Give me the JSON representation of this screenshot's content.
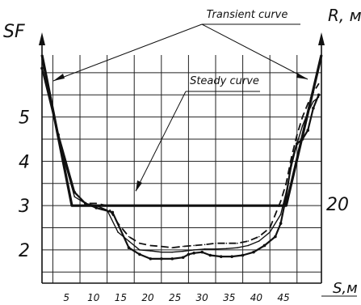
{
  "chart_data": {
    "type": "line",
    "xlabel": "S,м",
    "ylabel_left": "SF",
    "ylabel_right": "R, м",
    "x_ticks": [
      "5",
      "10",
      "15",
      "20",
      "25",
      "30",
      "35",
      "40",
      "45"
    ],
    "y_ticks_left": [
      "2",
      "3",
      "4",
      "5"
    ],
    "y_ticks_right": [
      "20"
    ],
    "xlim": [
      -2,
      49.5
    ],
    "ylim": [
      1.25,
      6.4
    ],
    "grid": true,
    "annotations": [
      "Transient curve",
      "Steady curve"
    ],
    "series": [
      {
        "style": "thick-solid",
        "x": [
          -2,
          3.5,
          43,
          49.5
        ],
        "y": [
          6.4,
          3.0,
          3.0,
          6.4
        ]
      },
      {
        "style": "solid-with-marks",
        "x": [
          -2,
          1,
          4,
          6,
          8,
          11,
          14,
          16,
          18,
          20,
          22,
          24,
          25,
          26,
          27.5,
          29,
          31,
          33,
          35,
          37,
          39,
          41,
          42,
          43,
          44,
          45,
          46,
          47,
          48,
          49
        ],
        "y": [
          6.1,
          4.6,
          3.3,
          3.05,
          2.95,
          2.85,
          2.05,
          1.9,
          1.8,
          1.8,
          1.8,
          1.83,
          1.9,
          1.93,
          1.95,
          1.88,
          1.85,
          1.85,
          1.88,
          1.95,
          2.1,
          2.3,
          2.6,
          3.2,
          4.0,
          4.4,
          4.5,
          4.7,
          5.2,
          5.5
        ]
      },
      {
        "style": "dashed",
        "x": [
          -1.5,
          1,
          4,
          6,
          8,
          10,
          12,
          14,
          16,
          18,
          20,
          22,
          24,
          26,
          28,
          30,
          32,
          34,
          36,
          38,
          40,
          41,
          42,
          43,
          44,
          45,
          46,
          47,
          48,
          49
        ],
        "y": [
          6.1,
          4.6,
          3.3,
          3.05,
          3.05,
          3.0,
          2.6,
          2.3,
          2.15,
          2.1,
          2.08,
          2.05,
          2.08,
          2.1,
          2.12,
          2.15,
          2.15,
          2.15,
          2.2,
          2.3,
          2.5,
          2.8,
          3.1,
          3.5,
          4.1,
          4.6,
          5.0,
          5.3,
          5.55,
          5.75
        ]
      },
      {
        "style": "solid-thin",
        "x": [
          -2,
          1,
          4,
          6,
          8,
          10,
          12,
          14,
          16,
          18,
          20,
          22,
          24,
          26,
          28,
          30,
          32,
          34,
          36,
          38,
          40,
          42,
          43,
          44,
          45,
          46,
          47,
          48,
          49
        ],
        "y": [
          6.3,
          4.5,
          3.2,
          3.05,
          3.0,
          2.9,
          2.4,
          2.2,
          2.0,
          1.98,
          1.95,
          1.95,
          1.97,
          2.0,
          2.02,
          2.02,
          2.03,
          2.05,
          2.1,
          2.2,
          2.4,
          2.8,
          3.3,
          3.9,
          4.4,
          4.8,
          5.1,
          5.35,
          5.45
        ]
      }
    ]
  }
}
